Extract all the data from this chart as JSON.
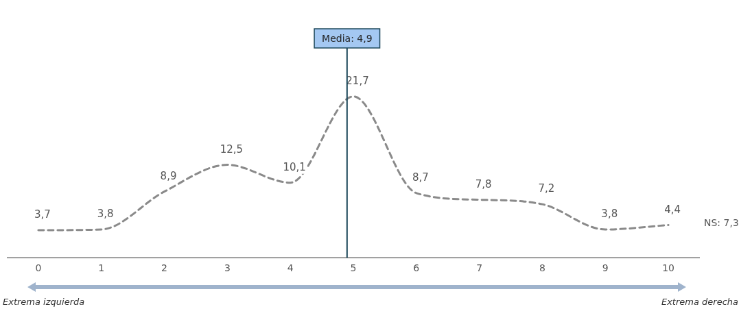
{
  "chart_data": {
    "type": "line",
    "x": [
      0,
      1,
      2,
      3,
      4,
      5,
      6,
      7,
      8,
      9,
      10
    ],
    "series": [
      {
        "color": "#8a8a8a",
        "values": [
          3.7,
          3.8,
          8.9,
          12.5,
          10.1,
          21.7,
          8.7,
          7.8,
          7.2,
          3.8,
          4.4
        ],
        "value_labels": [
          "3,7",
          "3,8",
          "8,9",
          "12,5",
          "10,1",
          "21,7",
          "8,7",
          "7,8",
          "7,2",
          "3,8",
          "4,4"
        ]
      }
    ],
    "xlim": [
      -0.5,
      10.5
    ],
    "xticks": [
      0,
      1,
      2,
      3,
      4,
      5,
      6,
      7,
      8,
      9,
      10
    ],
    "ref_lines": [
      {
        "axis": "x",
        "value": 4.9,
        "label": "Media: 4,9",
        "color": "#1f4a5c"
      }
    ],
    "annotations": [
      "NS: 7,3",
      "Extrema izquierda",
      "Extrema derecha"
    ],
    "grid": false,
    "legend": false,
    "marker": "none",
    "line_style": "dashed",
    "tick_labels": "x"
  }
}
